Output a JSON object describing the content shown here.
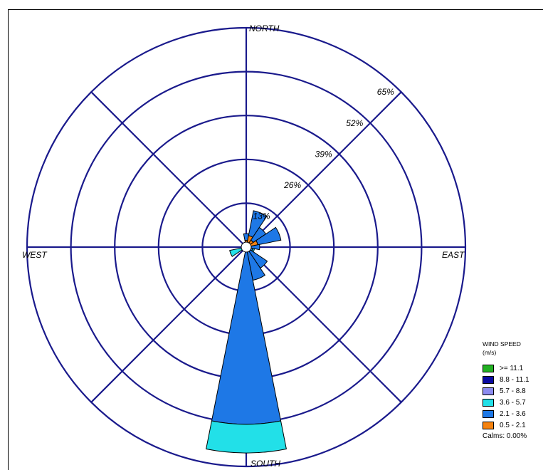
{
  "chart_data": {
    "type": "wind-rose",
    "directions": {
      "north": "NORTH",
      "south": "SOUTH",
      "east": "EAST",
      "west": "WEST"
    },
    "sectors": 16,
    "radial_max": 65,
    "ring_values": [
      13,
      26,
      39,
      52,
      65
    ],
    "ring_labels": [
      "13%",
      "26%",
      "39%",
      "52%",
      "65%"
    ],
    "ring_label_angle_deg": 45,
    "calm_fraction": 0.0,
    "speed_bins": [
      {
        "label": ">= 11.1",
        "color": "#22b022"
      },
      {
        "label": "8.8 - 11.1",
        "color": "#0a0aa0"
      },
      {
        "label": "5.7 -  8.8",
        "color": "#8c8cf0"
      },
      {
        "label": "3.6 -  5.7",
        "color": "#22e0e8"
      },
      {
        "label": "2.1 -  3.6",
        "color": "#1e78e6"
      },
      {
        "label": "0.5 -  2.1",
        "color": "#f5820f"
      }
    ],
    "petals": [
      {
        "direction": "N",
        "values": [
          0,
          0,
          0,
          0,
          2.0,
          2.0
        ]
      },
      {
        "direction": "NNE",
        "values": [
          0,
          0,
          0,
          0,
          7.5,
          3.5
        ]
      },
      {
        "direction": "NE",
        "values": [
          0,
          0,
          0,
          0,
          4.5,
          2.5
        ]
      },
      {
        "direction": "ENE",
        "values": [
          0,
          0,
          0,
          0,
          7.0,
          3.5
        ]
      },
      {
        "direction": "E",
        "values": [
          0,
          0,
          0,
          0,
          2.5,
          1.5
        ]
      },
      {
        "direction": "ESE",
        "values": [
          0,
          0,
          0,
          0.5,
          1.0,
          1.0
        ]
      },
      {
        "direction": "SE",
        "values": [
          0,
          0,
          0,
          0,
          7.0,
          0.5
        ]
      },
      {
        "direction": "SSE",
        "values": [
          0,
          0,
          0,
          0,
          9.5,
          0.5
        ]
      },
      {
        "direction": "S",
        "values": [
          0,
          0,
          0,
          8.5,
          52.5,
          0
        ]
      },
      {
        "direction": "SSW",
        "values": [
          0,
          0,
          0,
          0,
          1.0,
          0
        ]
      },
      {
        "direction": "SW",
        "values": [
          0,
          0,
          0,
          0,
          0.5,
          0
        ]
      },
      {
        "direction": "WSW",
        "values": [
          0,
          0,
          0,
          5.0,
          0,
          0
        ]
      },
      {
        "direction": "W",
        "values": [
          0,
          0,
          0,
          0,
          0,
          0
        ]
      },
      {
        "direction": "WNW",
        "values": [
          0,
          0,
          0,
          0,
          0,
          0
        ]
      },
      {
        "direction": "NW",
        "values": [
          0,
          0,
          0,
          0,
          0,
          0
        ]
      },
      {
        "direction": "NNW",
        "values": [
          0,
          0,
          0,
          0,
          0,
          0
        ]
      }
    ]
  },
  "legend": {
    "title": "WIND SPEED",
    "units": "(m/s)",
    "calms": "Calms: 0.00%"
  }
}
